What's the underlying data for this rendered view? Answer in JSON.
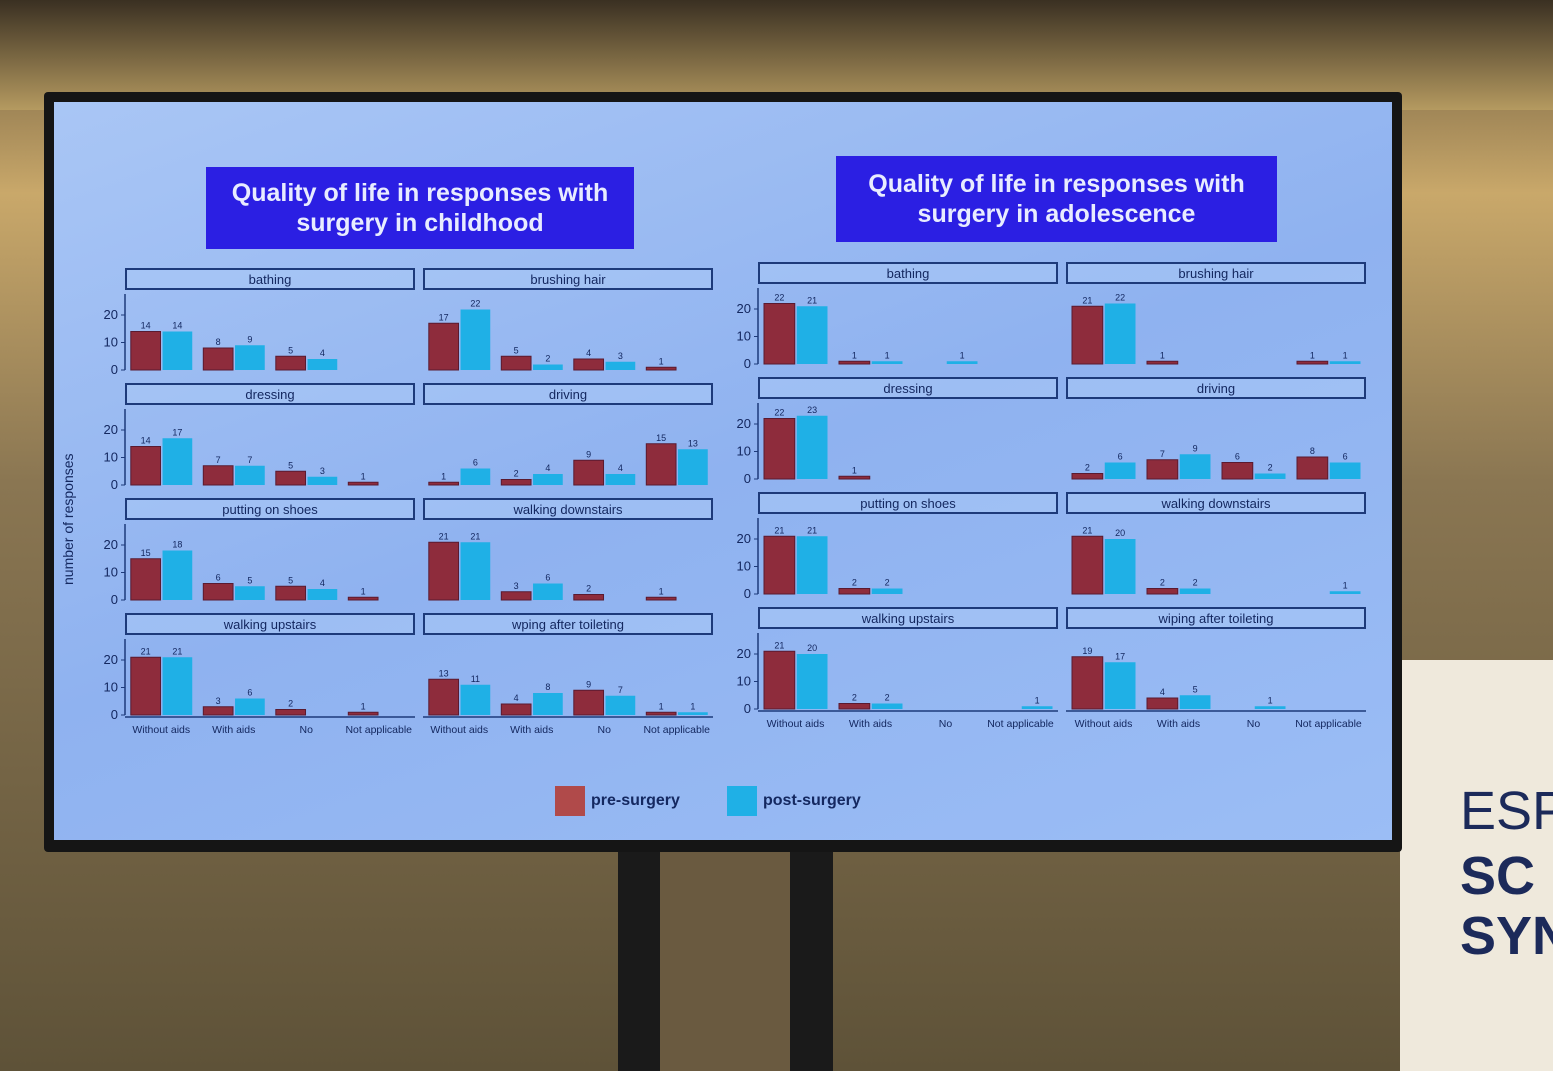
{
  "colors": {
    "pre": "#8e2c3c",
    "post": "#1fb0e6",
    "title_bg": "#2b1fe3"
  },
  "banner_text": [
    "ESP",
    "SC",
    "SYN"
  ],
  "chart_data": [
    {
      "type": "bar",
      "title": "Quality of life in responses with surgery in childhood",
      "ylabel": "number of responses",
      "ylim": [
        0,
        25
      ],
      "yticks": [
        0,
        10,
        20
      ],
      "categories": [
        "Without aids",
        "With aids",
        "No",
        "Not applicable"
      ],
      "series_names": [
        "pre-surgery",
        "post-surgery"
      ],
      "facets": [
        {
          "label": "bathing",
          "pre": [
            14,
            8,
            5,
            null
          ],
          "post": [
            14,
            9,
            4,
            null
          ]
        },
        {
          "label": "brushing hair",
          "pre": [
            17,
            5,
            4,
            1
          ],
          "post": [
            22,
            2,
            3,
            null
          ]
        },
        {
          "label": "dressing",
          "pre": [
            14,
            7,
            5,
            1
          ],
          "post": [
            17,
            7,
            3,
            null
          ]
        },
        {
          "label": "driving",
          "pre": [
            1,
            2,
            9,
            15
          ],
          "post": [
            6,
            4,
            4,
            13
          ]
        },
        {
          "label": "putting on shoes",
          "pre": [
            15,
            6,
            5,
            1
          ],
          "post": [
            18,
            5,
            4,
            null
          ]
        },
        {
          "label": "walking downstairs",
          "pre": [
            21,
            3,
            2,
            1
          ],
          "post": [
            21,
            6,
            null,
            null
          ]
        },
        {
          "label": "walking upstairs",
          "pre": [
            21,
            3,
            2,
            1
          ],
          "post": [
            21,
            6,
            null,
            null
          ]
        },
        {
          "label": "wping after toileting",
          "pre": [
            13,
            4,
            9,
            1
          ],
          "post": [
            11,
            8,
            7,
            1
          ]
        }
      ]
    },
    {
      "type": "bar",
      "title": "Quality of life in responses with surgery in adolescence",
      "ylim": [
        0,
        25
      ],
      "yticks": [
        0,
        10,
        20
      ],
      "categories": [
        "Without aids",
        "With aids",
        "No",
        "Not applicable"
      ],
      "series_names": [
        "pre-surgery",
        "post-surgery"
      ],
      "facets": [
        {
          "label": "bathing",
          "pre": [
            22,
            1,
            null,
            null
          ],
          "post": [
            21,
            1,
            1,
            null
          ]
        },
        {
          "label": "brushing hair",
          "pre": [
            21,
            1,
            null,
            1
          ],
          "post": [
            22,
            null,
            null,
            1
          ]
        },
        {
          "label": "dressing",
          "pre": [
            22,
            1,
            null,
            null
          ],
          "post": [
            23,
            null,
            null,
            null
          ]
        },
        {
          "label": "driving",
          "pre": [
            2,
            7,
            6,
            8
          ],
          "post": [
            6,
            9,
            2,
            6
          ]
        },
        {
          "label": "putting on shoes",
          "pre": [
            21,
            2,
            null,
            null
          ],
          "post": [
            21,
            2,
            null,
            null
          ]
        },
        {
          "label": "walking downstairs",
          "pre": [
            21,
            2,
            null,
            null
          ],
          "post": [
            20,
            2,
            null,
            1
          ]
        },
        {
          "label": "walking upstairs",
          "pre": [
            21,
            2,
            null,
            null
          ],
          "post": [
            20,
            2,
            null,
            1
          ]
        },
        {
          "label": "wiping after toileting",
          "pre": [
            19,
            4,
            null,
            null
          ],
          "post": [
            17,
            5,
            1,
            null
          ]
        }
      ]
    }
  ],
  "legend": {
    "pre_label": "pre-surgery",
    "post_label": "post-surgery"
  }
}
